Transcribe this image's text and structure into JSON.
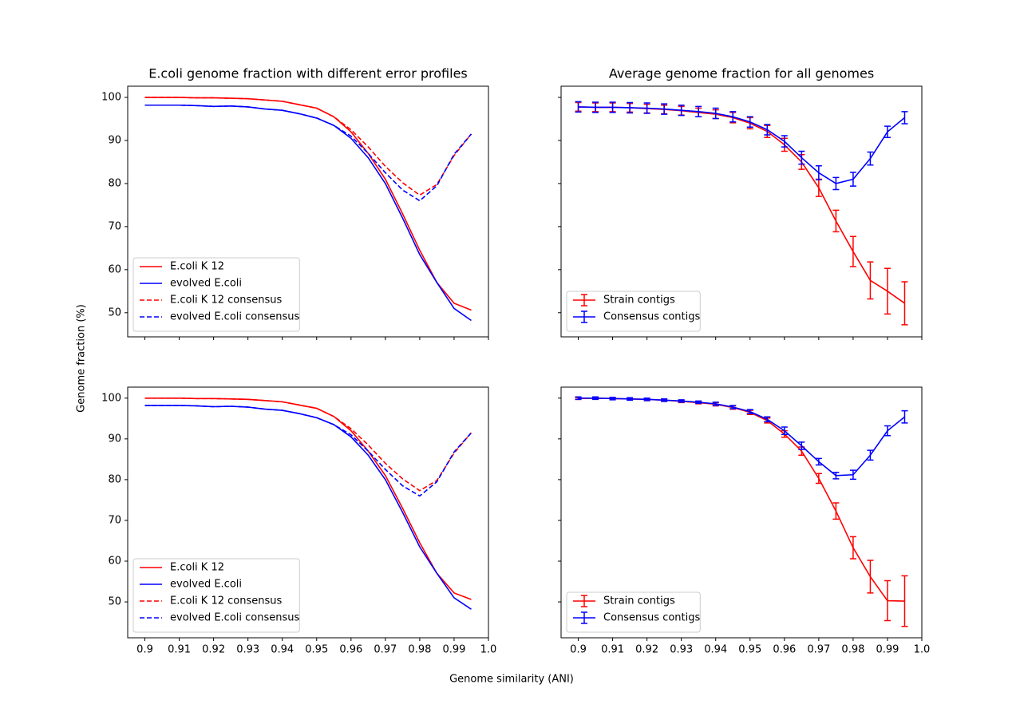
{
  "xlabel": "Genome similarity (ANI)",
  "ylabel": "Genome fraction (%)",
  "chart_data": [
    {
      "type": "line",
      "title": "E.coli genome fraction with different error profiles",
      "x": [
        0.9,
        0.905,
        0.91,
        0.915,
        0.92,
        0.925,
        0.93,
        0.935,
        0.94,
        0.945,
        0.95,
        0.955,
        0.96,
        0.965,
        0.97,
        0.975,
        0.98,
        0.985,
        0.99,
        0.995
      ],
      "series": [
        {
          "name": "E.coli K 12",
          "color": "#ff0000",
          "linestyle": "solid",
          "values": [
            100,
            100,
            100,
            99.9,
            99.9,
            99.8,
            99.7,
            99.4,
            99.1,
            98.3,
            97.5,
            95.5,
            92,
            87,
            81,
            73,
            64.5,
            57,
            52.2,
            50.6
          ]
        },
        {
          "name": "evolved E.coli",
          "color": "#0000ff",
          "linestyle": "solid",
          "values": [
            98.2,
            98.2,
            98.2,
            98.1,
            97.9,
            98,
            97.8,
            97.3,
            97,
            96.2,
            95.2,
            93.5,
            90.5,
            86,
            80,
            72,
            63.5,
            57,
            51,
            48.2
          ]
        },
        {
          "name": "E.coli K 12 consensus",
          "color": "#ff0000",
          "linestyle": "dashed",
          "values": [
            100,
            100,
            100,
            99.9,
            99.9,
            99.8,
            99.7,
            99.4,
            99.1,
            98.3,
            97.5,
            95.5,
            92.5,
            88.5,
            84,
            80.2,
            77.3,
            79.8,
            86.5,
            91.5
          ]
        },
        {
          "name": "evolved E.coli consensus",
          "color": "#0000ff",
          "linestyle": "dashed",
          "values": [
            98.2,
            98.2,
            98.2,
            98.1,
            97.9,
            98,
            97.8,
            97.3,
            97,
            96.2,
            95.2,
            93.5,
            91,
            87,
            82.5,
            78.5,
            76,
            79.5,
            86.8,
            91.5
          ]
        }
      ],
      "xlim": [
        0.895,
        1.0
      ],
      "xticks": [
        0.9,
        0.91,
        0.92,
        0.93,
        0.94,
        0.95,
        0.96,
        0.97,
        0.98,
        0.99,
        {
          "value": 1.0,
          "label": "1.0"
        }
      ],
      "xtick_labels": false,
      "ylim": [
        44.4,
        102.6
      ],
      "yticks": [
        50,
        60,
        70,
        80,
        90,
        100
      ],
      "ytick_labels": true,
      "legend": "lower left"
    },
    {
      "type": "line",
      "title": "Average genome fraction for all genomes",
      "x": [
        0.9,
        0.905,
        0.91,
        0.915,
        0.92,
        0.925,
        0.93,
        0.935,
        0.94,
        0.945,
        0.95,
        0.955,
        0.96,
        0.965,
        0.97,
        0.975,
        0.98,
        0.985,
        0.99,
        0.995
      ],
      "series": [
        {
          "name": "Strain contigs",
          "color": "#ff0000",
          "linestyle": "solid",
          "values": [
            97.8,
            97.7,
            97.7,
            97.6,
            97.4,
            97.2,
            96.9,
            96.5,
            96.1,
            95.3,
            94,
            92.1,
            89,
            85,
            79,
            71.3,
            64.2,
            57.5,
            55,
            52.2
          ],
          "errors": [
            1,
            1,
            1,
            1,
            1,
            1,
            1,
            1,
            1,
            1.2,
            1.3,
            1.4,
            1.5,
            1.7,
            2,
            2.5,
            3.5,
            4.3,
            5.3,
            5
          ]
        },
        {
          "name": "Consensus contigs",
          "color": "#0000ff",
          "linestyle": "solid",
          "values": [
            97.8,
            97.7,
            97.7,
            97.6,
            97.5,
            97.3,
            97,
            96.7,
            96.3,
            95.5,
            94.3,
            92.5,
            89.8,
            86,
            82.5,
            80,
            81,
            85.8,
            92,
            95.3
          ],
          "errors": [
            1.2,
            1.2,
            1.2,
            1.2,
            1.2,
            1.2,
            1.2,
            1.2,
            1.2,
            1.2,
            1.2,
            1.2,
            1.3,
            1.5,
            1.6,
            1.4,
            1.6,
            1.5,
            1.3,
            1.4
          ]
        }
      ],
      "xlim": [
        0.895,
        1.0
      ],
      "xticks": [
        0.9,
        0.91,
        0.92,
        0.93,
        0.94,
        0.95,
        0.96,
        0.97,
        0.98,
        0.99,
        {
          "value": 1.0,
          "label": "1.0"
        }
      ],
      "xtick_labels": false,
      "ylim": [
        44.4,
        102.6
      ],
      "yticks": [
        50,
        60,
        70,
        80,
        90,
        100
      ],
      "ytick_labels": false,
      "legend": "lower left"
    },
    {
      "type": "line",
      "x": [
        0.9,
        0.905,
        0.91,
        0.915,
        0.92,
        0.925,
        0.93,
        0.935,
        0.94,
        0.945,
        0.95,
        0.955,
        0.96,
        0.965,
        0.97,
        0.975,
        0.98,
        0.985,
        0.99,
        0.995
      ],
      "series": [
        {
          "name": "E.coli K 12",
          "color": "#ff0000",
          "linestyle": "solid",
          "values": [
            100,
            100,
            100,
            99.9,
            99.9,
            99.8,
            99.7,
            99.4,
            99.1,
            98.3,
            97.5,
            95.5,
            92,
            87,
            81,
            73,
            64.5,
            57,
            52.2,
            50.6
          ]
        },
        {
          "name": "evolved E.coli",
          "color": "#0000ff",
          "linestyle": "solid",
          "values": [
            98.2,
            98.2,
            98.2,
            98.1,
            97.9,
            98,
            97.8,
            97.3,
            97,
            96.2,
            95.2,
            93.5,
            90.5,
            86,
            80,
            72,
            63.5,
            57,
            51,
            48.2
          ]
        },
        {
          "name": "E.coli K 12 consensus",
          "color": "#ff0000",
          "linestyle": "dashed",
          "values": [
            100,
            100,
            100,
            99.9,
            99.9,
            99.8,
            99.7,
            99.4,
            99.1,
            98.3,
            97.5,
            95.5,
            92.5,
            88.5,
            84,
            80.2,
            77.3,
            79.8,
            86.5,
            91.5
          ]
        },
        {
          "name": "evolved E.coli consensus",
          "color": "#0000ff",
          "linestyle": "dashed",
          "values": [
            98.2,
            98.2,
            98.2,
            98.1,
            97.9,
            98,
            97.8,
            97.3,
            97,
            96.2,
            95.2,
            93.5,
            91,
            87,
            82.5,
            78.5,
            76,
            79.5,
            86.8,
            91.5
          ]
        }
      ],
      "xlim": [
        0.895,
        1.0
      ],
      "xticks": [
        0.9,
        0.91,
        0.92,
        0.93,
        0.94,
        0.95,
        0.96,
        0.97,
        0.98,
        0.99,
        {
          "value": 1.0,
          "label": "1.0"
        }
      ],
      "xtick_labels": true,
      "ylim": [
        41.2,
        102.7
      ],
      "yticks": [
        50,
        60,
        70,
        80,
        90,
        100
      ],
      "ytick_labels": true,
      "legend": "lower left"
    },
    {
      "type": "line",
      "x": [
        0.9,
        0.905,
        0.91,
        0.915,
        0.92,
        0.925,
        0.93,
        0.935,
        0.94,
        0.945,
        0.95,
        0.955,
        0.96,
        0.965,
        0.97,
        0.975,
        0.98,
        0.985,
        0.99,
        0.995
      ],
      "series": [
        {
          "name": "Strain contigs",
          "color": "#ff0000",
          "linestyle": "solid",
          "values": [
            99.9,
            100,
            99.9,
            99.8,
            99.7,
            99.5,
            99.2,
            98.9,
            98.5,
            97.7,
            96.5,
            94.5,
            91.2,
            87,
            80.3,
            72.3,
            63.3,
            56.2,
            50.3,
            50.2
          ],
          "errors": [
            0.2,
            0.2,
            0.2,
            0.2,
            0.3,
            0.3,
            0.3,
            0.3,
            0.4,
            0.4,
            0.5,
            0.6,
            0.8,
            1,
            1.2,
            2,
            2.7,
            4,
            4.9,
            6.2
          ]
        },
        {
          "name": "Consensus contigs",
          "color": "#0000ff",
          "linestyle": "solid",
          "values": [
            100,
            100,
            99.9,
            99.8,
            99.7,
            99.5,
            99.3,
            99,
            98.6,
            97.8,
            96.7,
            94.8,
            92,
            88.3,
            84.4,
            81,
            81.2,
            86,
            92,
            95.4
          ],
          "errors": [
            0.3,
            0.3,
            0.3,
            0.3,
            0.3,
            0.3,
            0.3,
            0.3,
            0.4,
            0.4,
            0.5,
            0.6,
            0.9,
            0.9,
            0.8,
            0.8,
            1.1,
            1.2,
            1.2,
            1.5
          ]
        }
      ],
      "xlim": [
        0.895,
        1.0
      ],
      "xticks": [
        0.9,
        0.91,
        0.92,
        0.93,
        0.94,
        0.95,
        0.96,
        0.97,
        0.98,
        0.99,
        {
          "value": 1.0,
          "label": "1.0"
        }
      ],
      "xtick_labels": true,
      "ylim": [
        41.2,
        102.7
      ],
      "yticks": [
        50,
        60,
        70,
        80,
        90,
        100
      ],
      "ytick_labels": false,
      "legend": "lower left"
    }
  ]
}
